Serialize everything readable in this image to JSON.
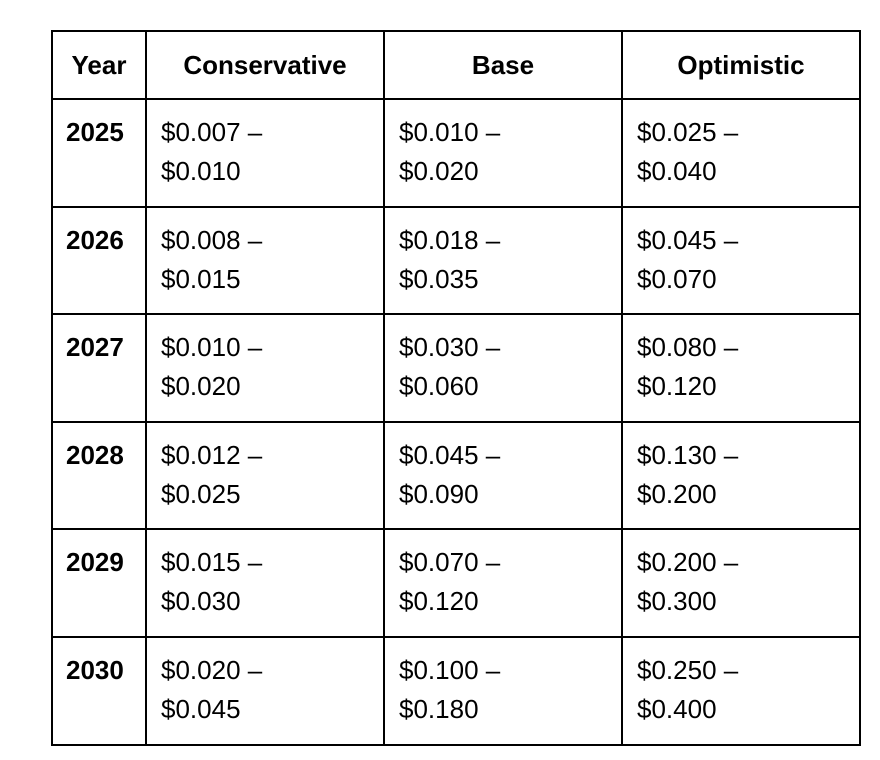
{
  "table": {
    "columns": [
      "Year",
      "Conservative",
      "Base",
      "Optimistic"
    ],
    "rows": [
      [
        "2025",
        "$0.007 – $0.010",
        "$0.010 – $0.020",
        "$0.025 – $0.040"
      ],
      [
        "2026",
        "$0.008 – $0.015",
        "$0.018 – $0.035",
        "$0.045 – $0.070"
      ],
      [
        "2027",
        "$0.010 – $0.020",
        "$0.030 – $0.060",
        "$0.080 – $0.120"
      ],
      [
        "2028",
        "$0.012 – $0.025",
        "$0.045 – $0.090",
        "$0.130 – $0.200"
      ],
      [
        "2029",
        "$0.015 – $0.030",
        "$0.070 – $0.120",
        "$0.200 – $0.300"
      ],
      [
        "2030",
        "$0.020 – $0.045",
        "$0.100 – $0.180",
        "$0.250 – $0.400"
      ]
    ]
  }
}
